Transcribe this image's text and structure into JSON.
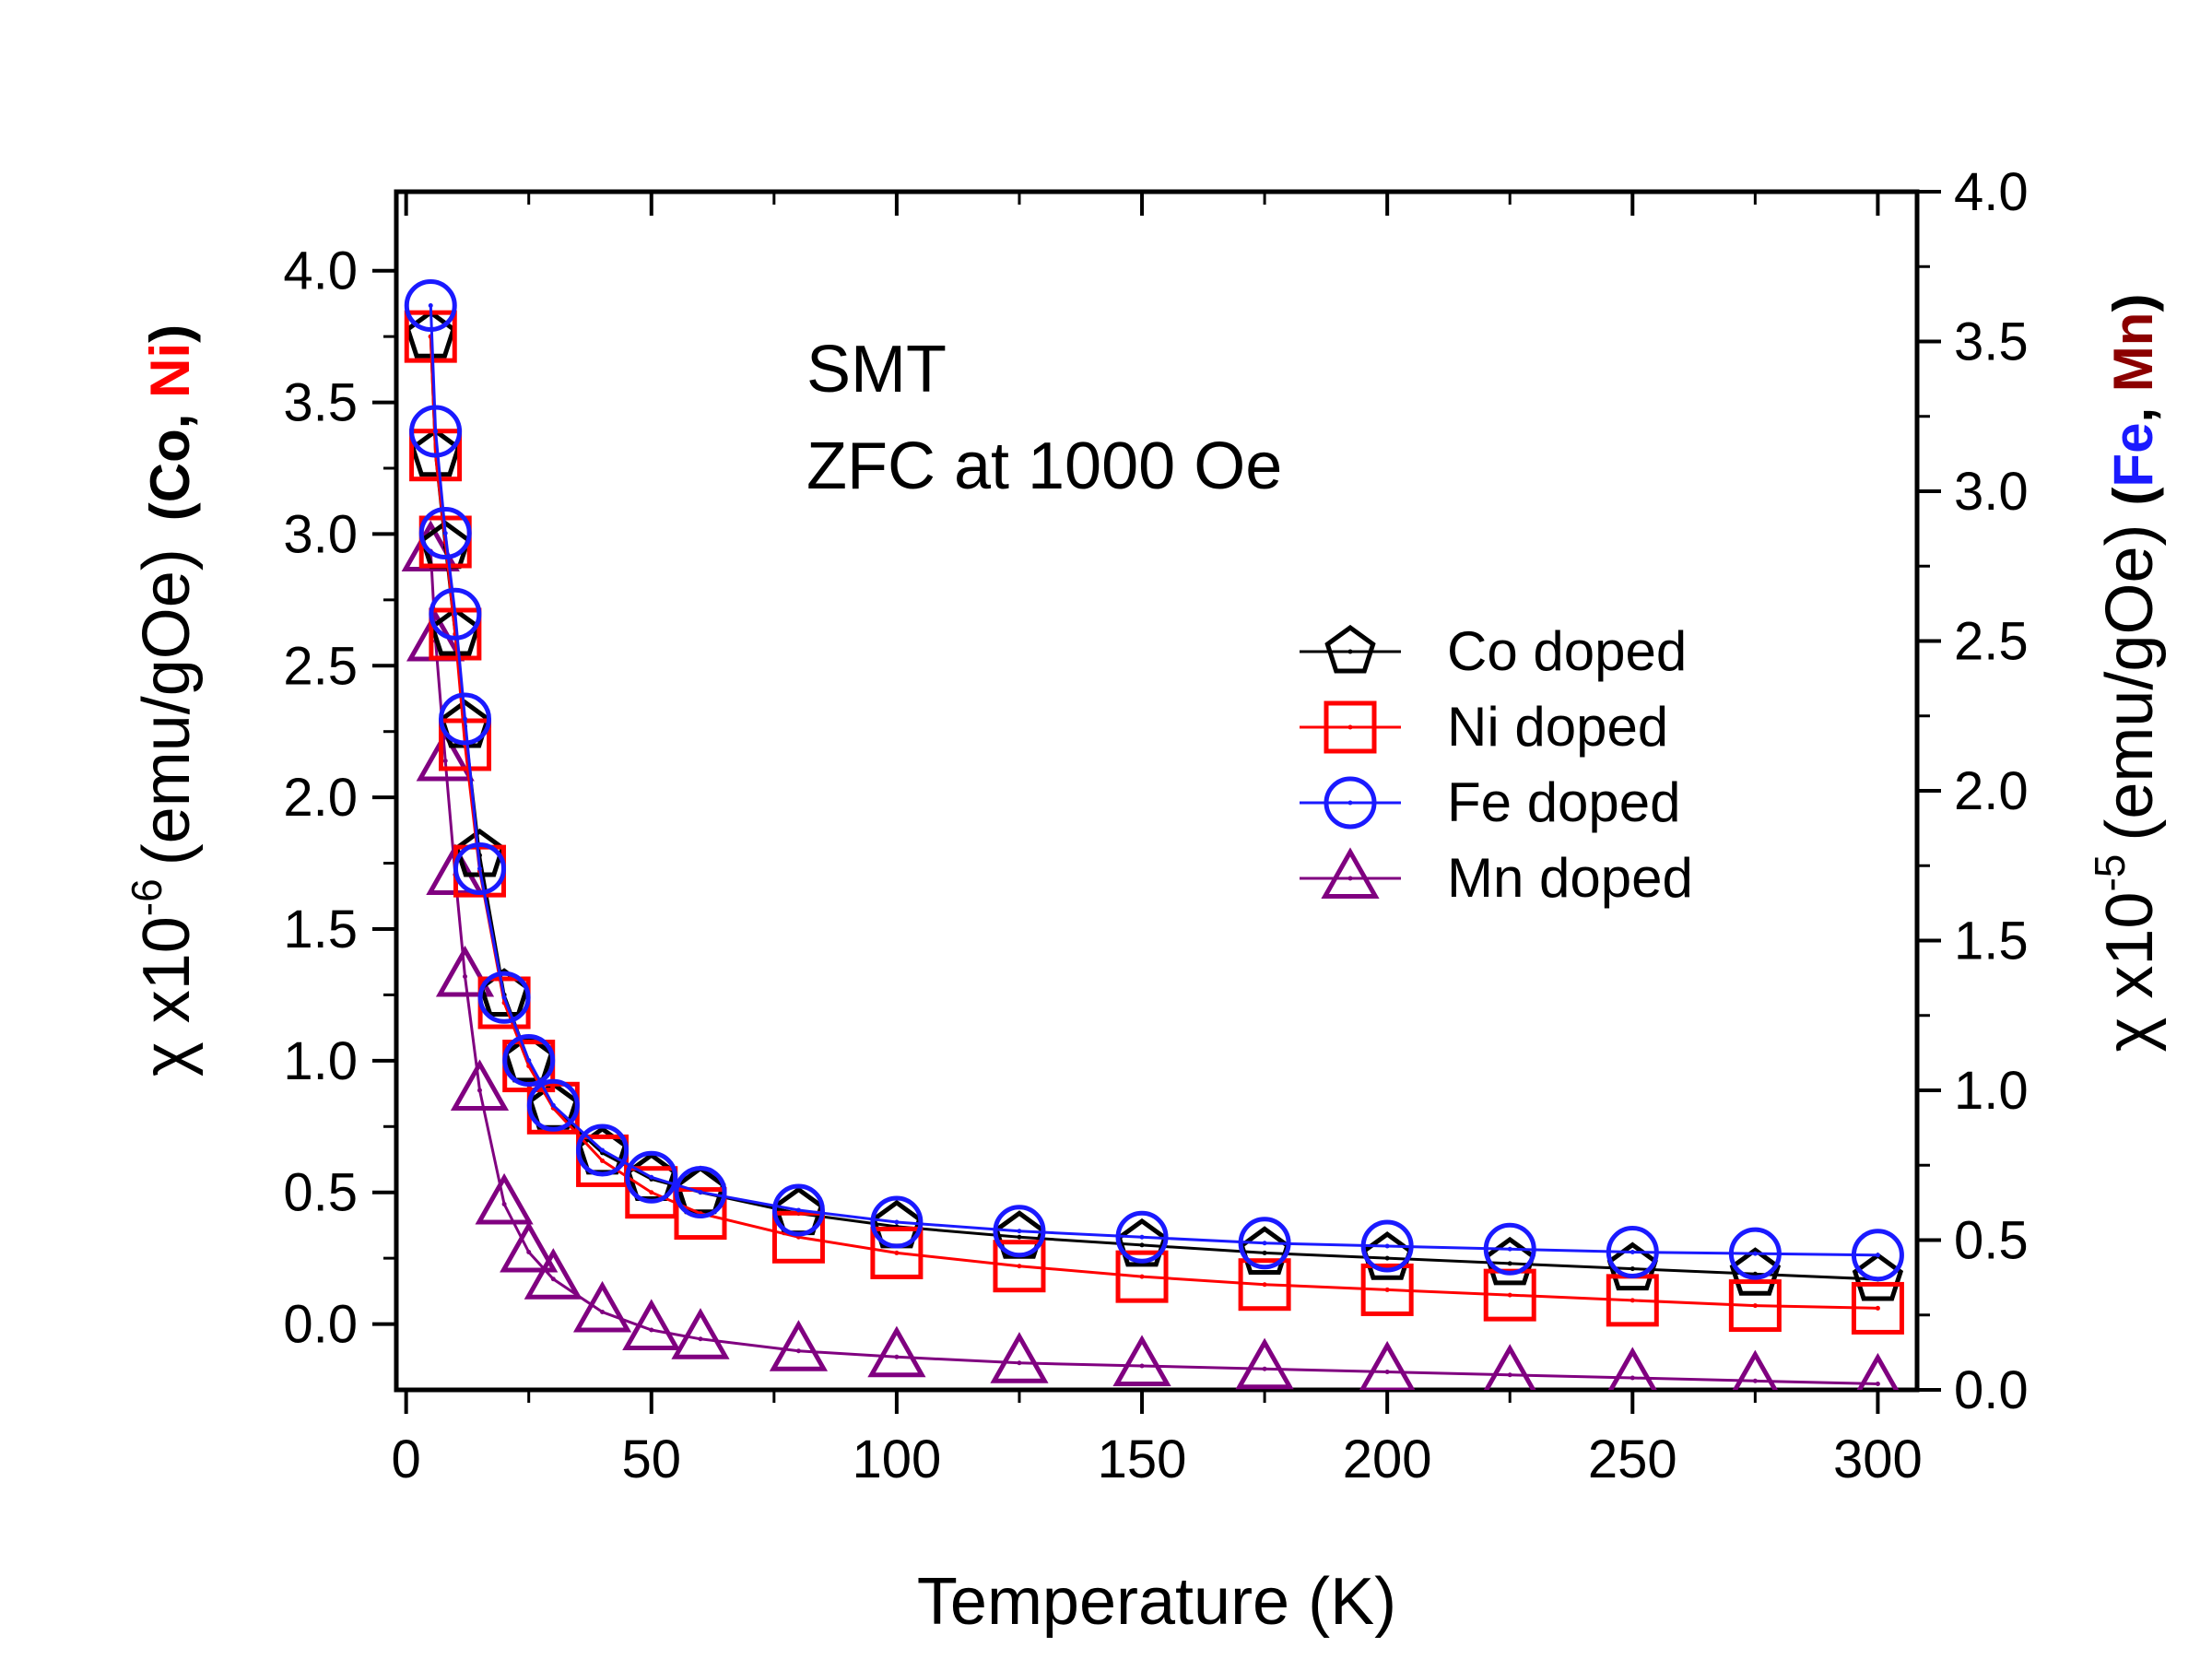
{
  "chart_data": {
    "type": "scatter",
    "x_label": "Temperature (K)",
    "y_left_label": {
      "prefix": "χ x10",
      "exponent": "-6",
      "unit": "(emu/gOe)",
      "paren_open": "(",
      "s1": "Co",
      "comma": ", ",
      "s2": "Ni",
      "paren_close": ")"
    },
    "y_right_label": {
      "prefix": "χ x10",
      "exponent": "-5",
      "unit": "(emu/gOe)",
      "paren_open": "(",
      "s1": "Fe",
      "comma": ", ",
      "s2": "Mn",
      "paren_close": ")"
    },
    "label_colors": {
      "Co": "#000000",
      "Ni": "#ff0000",
      "Fe": "#1a1aff",
      "Mn": "#8b0000"
    },
    "annotations": [
      "SMT",
      "ZFC at 1000 Oe"
    ],
    "x_range": [
      -2,
      308
    ],
    "x_ticks": [
      "0",
      "50",
      "100",
      "150",
      "200",
      "250",
      "300"
    ],
    "x_tick_values": [
      0,
      50,
      100,
      150,
      200,
      250,
      300
    ],
    "y_left_range": [
      -0.25,
      4.3
    ],
    "y_left_ticks": [
      "0.0",
      "0.5",
      "1.0",
      "1.5",
      "2.0",
      "2.5",
      "3.0",
      "3.5",
      "4.0"
    ],
    "y_left_tick_values": [
      0,
      0.5,
      1.0,
      1.5,
      2.0,
      2.5,
      3.0,
      3.5,
      4.0
    ],
    "y_right_range": [
      0,
      4.0
    ],
    "y_right_ticks": [
      "0.0",
      "0.5",
      "1.0",
      "1.5",
      "2.0",
      "2.5",
      "3.0",
      "3.5",
      "4.0"
    ],
    "y_right_tick_values": [
      0,
      0.5,
      1.0,
      1.5,
      2.0,
      2.5,
      3.0,
      3.5,
      4.0
    ],
    "legend_position": "upper-right",
    "series": [
      {
        "name": "Co doped",
        "axis": "left",
        "marker": "pentagon",
        "color": "#000000",
        "x": [
          5,
          6,
          8,
          10,
          12,
          15,
          20,
          25,
          30,
          40,
          50,
          60,
          80,
          100,
          125,
          150,
          175,
          200,
          225,
          250,
          275,
          300
        ],
        "y": [
          3.75,
          3.3,
          2.95,
          2.62,
          2.27,
          1.78,
          1.25,
          1.0,
          0.82,
          0.65,
          0.55,
          0.5,
          0.42,
          0.37,
          0.33,
          0.3,
          0.27,
          0.25,
          0.23,
          0.21,
          0.19,
          0.17
        ]
      },
      {
        "name": "Ni doped",
        "axis": "left",
        "marker": "square",
        "color": "#ff0000",
        "x": [
          5,
          6,
          8,
          10,
          12,
          15,
          20,
          25,
          30,
          40,
          50,
          60,
          80,
          100,
          125,
          150,
          175,
          200,
          225,
          250,
          275,
          300
        ],
        "y": [
          3.75,
          3.3,
          2.97,
          2.62,
          2.2,
          1.72,
          1.22,
          0.98,
          0.82,
          0.62,
          0.5,
          0.42,
          0.33,
          0.27,
          0.22,
          0.18,
          0.15,
          0.13,
          0.11,
          0.09,
          0.07,
          0.06
        ]
      },
      {
        "name": "Fe doped",
        "axis": "right",
        "marker": "circle",
        "color": "#1a1aff",
        "x": [
          5,
          6,
          8,
          10,
          12,
          15,
          20,
          25,
          30,
          40,
          50,
          60,
          80,
          100,
          125,
          150,
          175,
          200,
          225,
          250,
          275,
          300
        ],
        "y": [
          3.62,
          3.2,
          2.86,
          2.59,
          2.24,
          1.74,
          1.31,
          1.1,
          0.95,
          0.8,
          0.71,
          0.66,
          0.6,
          0.56,
          0.53,
          0.51,
          0.49,
          0.48,
          0.47,
          0.46,
          0.455,
          0.45
        ]
      },
      {
        "name": "Mn doped",
        "axis": "right",
        "marker": "triangle",
        "color": "#800080",
        "x": [
          5,
          6,
          8,
          10,
          12,
          15,
          20,
          25,
          30,
          40,
          50,
          60,
          80,
          100,
          125,
          150,
          175,
          200,
          225,
          250,
          275,
          300
        ],
        "y": [
          2.8,
          2.5,
          2.1,
          1.72,
          1.38,
          1.0,
          0.62,
          0.46,
          0.37,
          0.26,
          0.2,
          0.17,
          0.13,
          0.11,
          0.09,
          0.08,
          0.07,
          0.06,
          0.05,
          0.04,
          0.03,
          0.02
        ]
      }
    ]
  }
}
